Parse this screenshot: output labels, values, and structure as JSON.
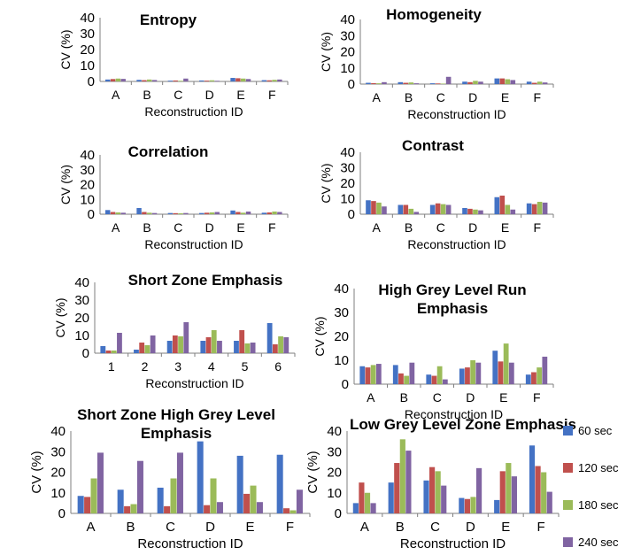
{
  "colors": {
    "s60": "#4472C4",
    "s120": "#C0504D",
    "s180": "#9BBB59",
    "s240": "#8064A2"
  },
  "legend": [
    {
      "name": "60 sec",
      "color": "#4472C4"
    },
    {
      "name": "120 sec",
      "color": "#C0504D"
    },
    {
      "name": "180 sec",
      "color": "#9BBB59"
    },
    {
      "name": "240 sec",
      "color": "#8064A2"
    }
  ],
  "chart_data": [
    {
      "type": "bar",
      "title": [
        "Entropy"
      ],
      "xlabel": "Reconstruction ID",
      "ylabel": "CV (%)",
      "ylim": [
        0,
        40
      ],
      "yticks": [
        0,
        10,
        20,
        30,
        40
      ],
      "categories": [
        "A",
        "B",
        "C",
        "D",
        "E",
        "F"
      ],
      "series": [
        {
          "name": "60 sec",
          "values": [
            1.2,
            1.0,
            0.5,
            0.6,
            2.2,
            0.8
          ]
        },
        {
          "name": "120 sec",
          "values": [
            1.5,
            0.8,
            0.6,
            0.5,
            2.0,
            0.7
          ]
        },
        {
          "name": "180 sec",
          "values": [
            1.8,
            1.2,
            0.4,
            0.7,
            1.8,
            1.0
          ]
        },
        {
          "name": "240 sec",
          "values": [
            1.6,
            0.9,
            1.8,
            0.4,
            1.5,
            1.2
          ]
        }
      ]
    },
    {
      "type": "bar",
      "title": [
        "Homogeneity"
      ],
      "xlabel": "Reconstruction ID",
      "ylabel": "CV (%)",
      "ylim": [
        0,
        40
      ],
      "yticks": [
        0,
        10,
        20,
        30,
        40
      ],
      "categories": [
        "A",
        "B",
        "C",
        "D",
        "E",
        "F"
      ],
      "series": [
        {
          "name": "60 sec",
          "values": [
            0.8,
            1.2,
            0.5,
            1.5,
            3.5,
            1.5
          ]
        },
        {
          "name": "120 sec",
          "values": [
            0.6,
            0.8,
            0.4,
            1.2,
            3.5,
            0.8
          ]
        },
        {
          "name": "180 sec",
          "values": [
            0.5,
            1.0,
            0.3,
            2.0,
            3.0,
            1.5
          ]
        },
        {
          "name": "240 sec",
          "values": [
            1.2,
            0.5,
            4.5,
            1.5,
            2.5,
            1.0
          ]
        }
      ]
    },
    {
      "type": "bar",
      "title": [
        "Correlation"
      ],
      "xlabel": "Reconstruction ID",
      "ylabel": "CV (%)",
      "ylim": [
        0,
        40
      ],
      "yticks": [
        0,
        10,
        20,
        30,
        40
      ],
      "categories": [
        "A",
        "B",
        "C",
        "D",
        "E",
        "F"
      ],
      "series": [
        {
          "name": "60 sec",
          "values": [
            2.8,
            4.2,
            0.8,
            0.8,
            2.5,
            1.0
          ]
        },
        {
          "name": "120 sec",
          "values": [
            1.5,
            1.5,
            0.7,
            1.0,
            1.5,
            1.2
          ]
        },
        {
          "name": "180 sec",
          "values": [
            1.2,
            1.0,
            0.6,
            1.2,
            1.0,
            1.8
          ]
        },
        {
          "name": "240 sec",
          "values": [
            1.0,
            0.8,
            0.8,
            1.5,
            1.8,
            1.5
          ]
        }
      ]
    },
    {
      "type": "bar",
      "title": [
        "Contrast"
      ],
      "xlabel": "Reconstruction ID",
      "ylabel": "CV (%)",
      "ylim": [
        0,
        40
      ],
      "yticks": [
        0,
        10,
        20,
        30,
        40
      ],
      "categories": [
        "A",
        "B",
        "C",
        "D",
        "E",
        "F"
      ],
      "series": [
        {
          "name": "60 sec",
          "values": [
            9,
            6,
            6,
            4,
            11,
            7
          ]
        },
        {
          "name": "120 sec",
          "values": [
            8.5,
            6,
            7,
            3.5,
            12,
            6.5
          ]
        },
        {
          "name": "180 sec",
          "values": [
            7.5,
            3.5,
            6.5,
            3,
            6,
            8
          ]
        },
        {
          "name": "240 sec",
          "values": [
            5,
            1.5,
            6,
            2.5,
            3,
            7.5
          ]
        }
      ]
    },
    {
      "type": "bar",
      "title": [
        "Short Zone Emphasis"
      ],
      "xlabel": "Reconstruction ID",
      "ylabel": "CV (%)",
      "ylim": [
        0,
        40
      ],
      "yticks": [
        0,
        10,
        20,
        30,
        40
      ],
      "categories": [
        "1",
        "2",
        "3",
        "4",
        "5",
        "6"
      ],
      "series": [
        {
          "name": "60 sec",
          "values": [
            4,
            2,
            7,
            7,
            7,
            17
          ]
        },
        {
          "name": "120 sec",
          "values": [
            1.5,
            6,
            10,
            9,
            13,
            5
          ]
        },
        {
          "name": "180 sec",
          "values": [
            1.5,
            4.5,
            9.5,
            13,
            5.5,
            9.5
          ]
        },
        {
          "name": "240 sec",
          "values": [
            11.5,
            10,
            17.5,
            7,
            6,
            9
          ]
        }
      ]
    },
    {
      "type": "bar",
      "title": [
        "High Grey Level Run",
        "Emphasis"
      ],
      "xlabel": "Reconstruction ID",
      "ylabel": "CV (%)",
      "ylim": [
        0,
        40
      ],
      "yticks": [
        0,
        10,
        20,
        30,
        40
      ],
      "categories": [
        "A",
        "B",
        "C",
        "D",
        "E",
        "F"
      ],
      "series": [
        {
          "name": "60 sec",
          "values": [
            7.5,
            8,
            4,
            6.5,
            14,
            4
          ]
        },
        {
          "name": "120 sec",
          "values": [
            7,
            4.5,
            3.5,
            7,
            9.5,
            5
          ]
        },
        {
          "name": "180 sec",
          "values": [
            8,
            3.5,
            7.5,
            10,
            17,
            7
          ]
        },
        {
          "name": "240 sec",
          "values": [
            8.5,
            9,
            2,
            9,
            9,
            11.5
          ]
        }
      ]
    },
    {
      "type": "bar",
      "title": [
        "Short Zone High Grey Level",
        "Emphasis"
      ],
      "xlabel": "Reconstruction ID",
      "ylabel": "CV (%)",
      "ylim": [
        0,
        40
      ],
      "yticks": [
        0,
        10,
        20,
        30,
        40
      ],
      "categories": [
        "A",
        "B",
        "C",
        "D",
        "E",
        "F"
      ],
      "series": [
        {
          "name": "60 sec",
          "values": [
            8.5,
            11.5,
            12.5,
            35,
            28,
            28.5
          ]
        },
        {
          "name": "120 sec",
          "values": [
            8,
            3.5,
            3.5,
            4,
            9.5,
            2.5
          ]
        },
        {
          "name": "180 sec",
          "values": [
            17,
            4.5,
            17,
            17,
            13.5,
            1.5
          ]
        },
        {
          "name": "240 sec",
          "values": [
            29.5,
            25.5,
            29.5,
            5.5,
            5.5,
            11.5
          ]
        }
      ]
    },
    {
      "type": "bar",
      "title": [
        "Low Grey Level Zone Emphasis"
      ],
      "xlabel": "Reconstruction ID",
      "ylabel": "CV (%)",
      "ylim": [
        0,
        40
      ],
      "yticks": [
        0,
        10,
        20,
        30,
        40
      ],
      "categories": [
        "A",
        "B",
        "C",
        "D",
        "E",
        "F"
      ],
      "series": [
        {
          "name": "60 sec",
          "values": [
            5,
            15,
            16,
            7.5,
            6.5,
            33
          ]
        },
        {
          "name": "120 sec",
          "values": [
            15,
            24.5,
            22.5,
            7,
            20.5,
            23
          ]
        },
        {
          "name": "180 sec",
          "values": [
            10,
            36,
            20.5,
            8,
            24.5,
            20
          ]
        },
        {
          "name": "240 sec",
          "values": [
            5,
            30.5,
            13.5,
            22,
            18,
            10.5
          ]
        }
      ]
    }
  ]
}
